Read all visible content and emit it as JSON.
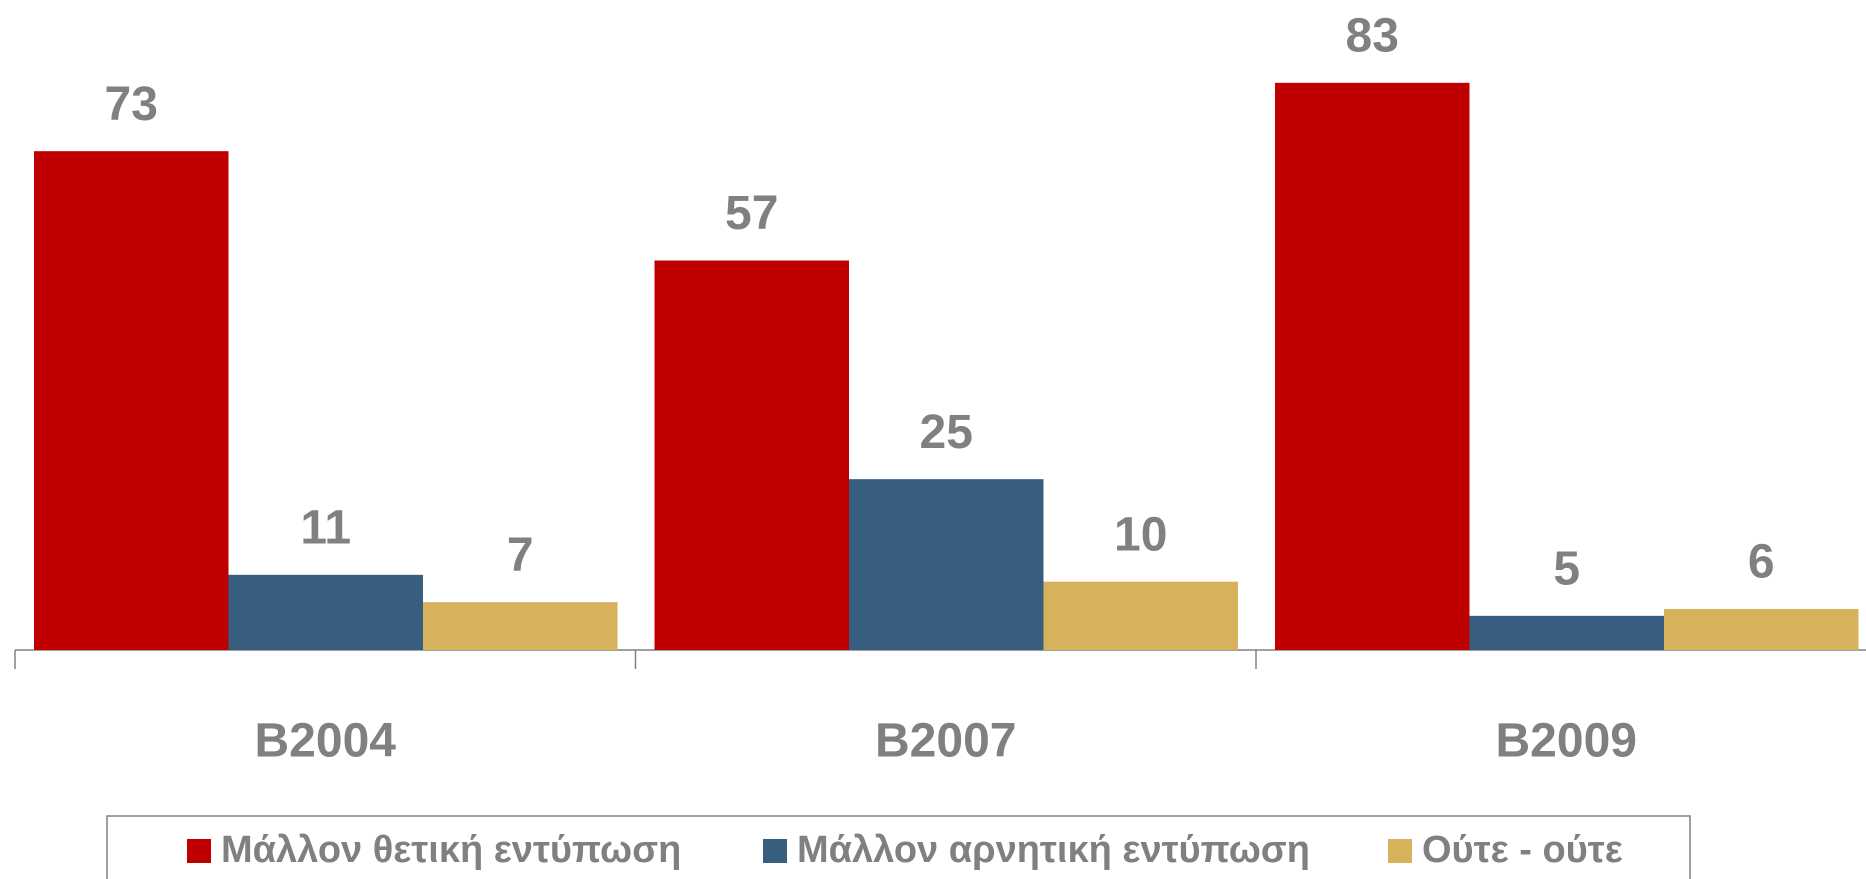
{
  "chart_data": {
    "type": "bar",
    "categories": [
      "B2004",
      "B2007",
      "B2009"
    ],
    "series": [
      {
        "name": "Μάλλον θετική εντύπωση",
        "color": "#c00000",
        "values": [
          73,
          57,
          83
        ]
      },
      {
        "name": "Μάλλον αρνητική εντύπωση",
        "color": "#375e7f",
        "values": [
          11,
          25,
          5
        ]
      },
      {
        "name": "Ούτε - ούτε",
        "color": "#d7b25d",
        "values": [
          7,
          10,
          6
        ]
      }
    ],
    "ylim": [
      0,
      90
    ],
    "legend": "bottom"
  }
}
